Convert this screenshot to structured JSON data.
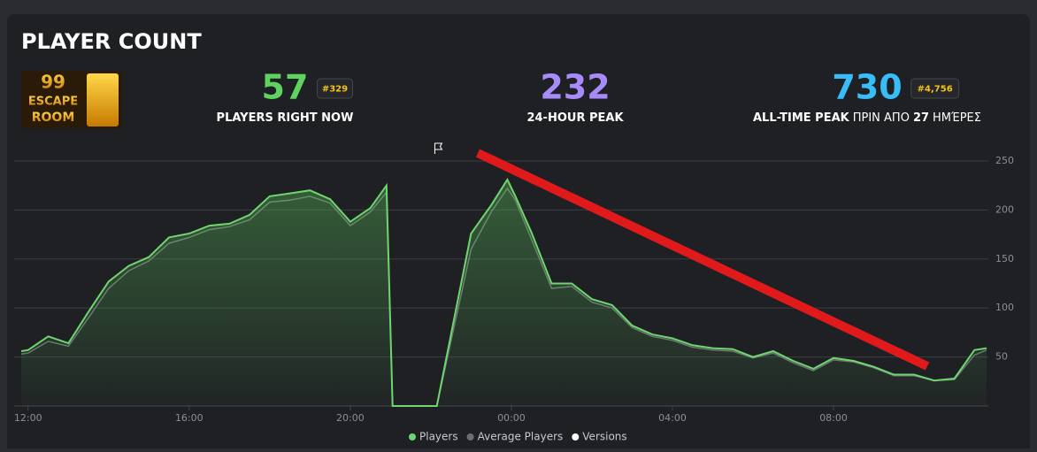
{
  "title": "PLAYER COUNT",
  "logo": {
    "lines": [
      "99",
      "ESCAPE",
      "ROOM"
    ]
  },
  "stats": [
    {
      "value": 57,
      "rank": "#329",
      "label": "PLAYERS RIGHT NOW",
      "color": "#5fd35f"
    },
    {
      "value": 232,
      "label": "24-HOUR PEAK",
      "color": "#a78bfa"
    },
    {
      "value": 730,
      "rank": "#4,756",
      "label": "ALL-TIME PEAK",
      "suffix_before": "ΠΡΙΝ ΑΠΟ",
      "suffix_number": 27,
      "suffix_after": "ΗΜΈΡΕΣ",
      "color": "#38bdf8"
    }
  ],
  "chart_data": {
    "type": "line",
    "x": [
      -0.17,
      0,
      0.5,
      1,
      1.5,
      2,
      2.5,
      3,
      3.5,
      4,
      4.5,
      5,
      5.5,
      6,
      6.5,
      7,
      7.5,
      8,
      8.5,
      8.9,
      9.05,
      10.15,
      11,
      11.5,
      11.9,
      12.1,
      12.5,
      13,
      13.5,
      14,
      14.5,
      15,
      15.5,
      16,
      16.5,
      17,
      17.5,
      18,
      18.5,
      19,
      19.5,
      20,
      20.5,
      21,
      21.5,
      22,
      22.5,
      23,
      23.5,
      23.8
    ],
    "series": [
      {
        "name": "Players",
        "color": "#6fd66f",
        "values": [
          56,
          57,
          71,
          64,
          96,
          127,
          143,
          152,
          172,
          176,
          184,
          186,
          195,
          214,
          217,
          220,
          211,
          188,
          202,
          225,
          0,
          0,
          176,
          205,
          231,
          214,
          177,
          125,
          125,
          109,
          103,
          82,
          73,
          69,
          62,
          59,
          58,
          50,
          56,
          46,
          38,
          49,
          46,
          40,
          32,
          32,
          26,
          28,
          57,
          59
        ]
      },
      {
        "name": "Average Players",
        "color": "#6b6d72",
        "values": [
          53,
          54,
          66,
          61,
          90,
          120,
          138,
          148,
          166,
          172,
          180,
          183,
          190,
          208,
          210,
          214,
          207,
          184,
          198,
          218,
          0,
          0,
          160,
          198,
          222,
          210,
          170,
          120,
          122,
          106,
          100,
          80,
          71,
          67,
          60,
          57,
          56,
          49,
          54,
          44,
          36,
          47,
          45,
          39,
          31,
          31,
          26,
          27,
          52,
          57
        ]
      }
    ],
    "versions": {
      "name": "Versions",
      "color": "#ffffff",
      "x": [
        10.1
      ]
    },
    "xlim": [
      -0.17,
      23.8
    ],
    "xticks": [
      {
        "value": 0,
        "label": "12:00"
      },
      {
        "value": 4,
        "label": "16:00"
      },
      {
        "value": 8,
        "label": "20:00"
      },
      {
        "value": 12,
        "label": "00:00"
      },
      {
        "value": 16,
        "label": "04:00"
      },
      {
        "value": 20,
        "label": "08:00"
      }
    ],
    "ylim": [
      0,
      250
    ],
    "yticks": [
      50,
      100,
      150,
      200,
      250
    ],
    "grid": true
  }
}
